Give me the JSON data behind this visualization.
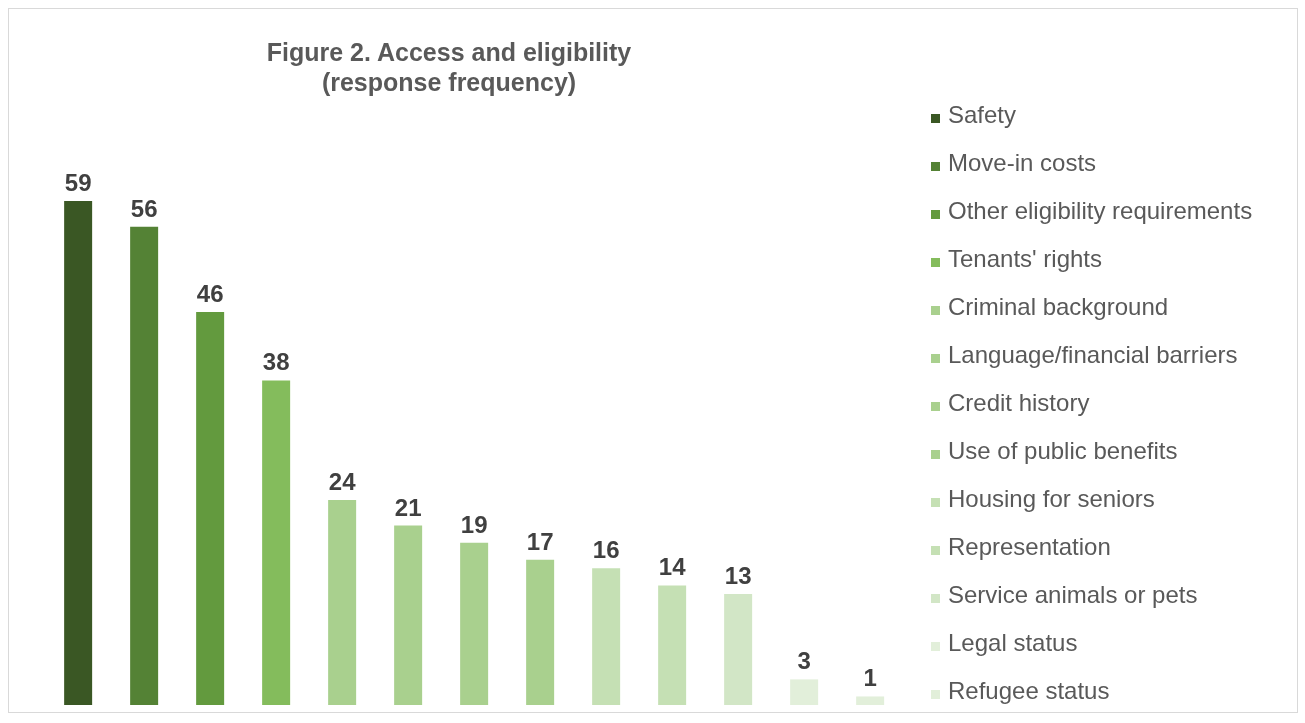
{
  "chart_data": {
    "type": "bar",
    "title": "Figure 2. Access and eligibility",
    "subtitle": "(response frequency)",
    "categories": [
      null,
      null,
      null,
      null,
      null,
      null,
      null,
      null,
      null,
      null,
      null,
      null,
      null
    ],
    "stacked": true,
    "series": [
      {
        "name": "Safety",
        "color": "#3a5724",
        "values": [
          59,
          null,
          null,
          null,
          null,
          null,
          null,
          null,
          null,
          null,
          null,
          null,
          null
        ]
      },
      {
        "name": "Move-in costs",
        "color": "#548235",
        "values": [
          null,
          56,
          null,
          null,
          null,
          null,
          null,
          null,
          null,
          null,
          null,
          null,
          null
        ]
      },
      {
        "name": "Other eligibility requirements",
        "color": "#639a3e",
        "values": [
          null,
          null,
          46,
          null,
          null,
          null,
          null,
          null,
          null,
          null,
          null,
          null,
          null
        ]
      },
      {
        "name": "Tenants' rights",
        "color": "#84bc5c",
        "values": [
          null,
          null,
          null,
          38,
          null,
          null,
          null,
          null,
          null,
          null,
          null,
          null,
          null
        ]
      },
      {
        "name": "Criminal background",
        "color": "#a9d08e",
        "values": [
          null,
          null,
          null,
          null,
          24,
          null,
          null,
          null,
          null,
          null,
          null,
          null,
          null
        ]
      },
      {
        "name": "Language/financial barriers",
        "color": "#a9d08e",
        "values": [
          null,
          null,
          null,
          null,
          null,
          21,
          null,
          null,
          null,
          null,
          null,
          null,
          null
        ]
      },
      {
        "name": "Credit history",
        "color": "#a9d08e",
        "values": [
          null,
          null,
          null,
          null,
          null,
          null,
          19,
          null,
          null,
          null,
          null,
          null,
          null
        ]
      },
      {
        "name": "Use of public benefits",
        "color": "#a9d08e",
        "values": [
          null,
          null,
          null,
          null,
          null,
          null,
          null,
          17,
          null,
          null,
          null,
          null,
          null
        ]
      },
      {
        "name": "Housing for seniors",
        "color": "#c5e0b4",
        "values": [
          null,
          null,
          null,
          null,
          null,
          null,
          null,
          null,
          16,
          null,
          null,
          null,
          null
        ]
      },
      {
        "name": "Representation",
        "color": "#c5e0b4",
        "values": [
          null,
          null,
          null,
          null,
          null,
          null,
          null,
          null,
          null,
          14,
          null,
          null,
          null
        ]
      },
      {
        "name": "Service animals or pets",
        "color": "#d2e6c6",
        "values": [
          null,
          null,
          null,
          null,
          null,
          null,
          null,
          null,
          null,
          null,
          13,
          null,
          null
        ]
      },
      {
        "name": "Legal status",
        "color": "#e2efda",
        "values": [
          null,
          null,
          null,
          null,
          null,
          null,
          null,
          null,
          null,
          null,
          null,
          3,
          null
        ]
      },
      {
        "name": "Refugee status",
        "color": "#e2efda",
        "values": [
          null,
          null,
          null,
          null,
          null,
          null,
          null,
          null,
          null,
          null,
          null,
          null,
          1
        ]
      }
    ],
    "data_labels": true,
    "legend": "right",
    "tick_labels": false,
    "grid": false
  }
}
